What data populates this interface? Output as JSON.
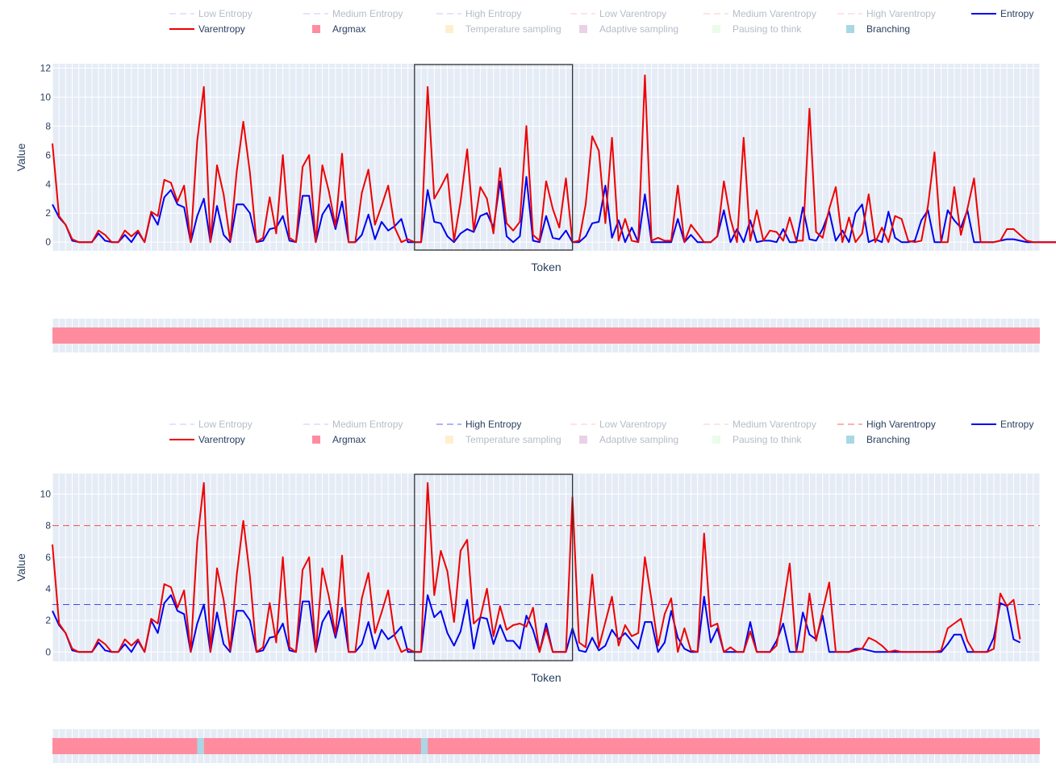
{
  "colors": {
    "entropy": "#0000ee",
    "varentropy": "#ee0000",
    "argmax": "#ff8c9e",
    "temperature": "#ffd37a",
    "adaptive": "#c27dbb",
    "pausing": "#c3f7c3",
    "branching": "#a8d8e6",
    "plot_bg": "#e5ecf6"
  },
  "legend": {
    "items": [
      {
        "key": "low_entropy",
        "label": "Low Entropy",
        "kind": "dash",
        "color": "#0000ee"
      },
      {
        "key": "medium_entropy",
        "label": "Medium Entropy",
        "kind": "dash",
        "color": "#0000ee"
      },
      {
        "key": "high_entropy",
        "label": "High Entropy",
        "kind": "dash",
        "color": "#0000ee"
      },
      {
        "key": "low_varentropy",
        "label": "Low Varentropy",
        "kind": "dash",
        "color": "#ee0000"
      },
      {
        "key": "medium_varentropy",
        "label": "Medium Varentropy",
        "kind": "dash",
        "color": "#ee0000"
      },
      {
        "key": "high_varentropy",
        "label": "High Varentropy",
        "kind": "dash",
        "color": "#ee0000"
      },
      {
        "key": "entropy",
        "label": "Entropy",
        "kind": "line",
        "color": "#0000ee"
      },
      {
        "key": "varentropy",
        "label": "Varentropy",
        "kind": "line",
        "color": "#ee0000"
      },
      {
        "key": "argmax",
        "label": "Argmax",
        "kind": "square",
        "color": "#ff8c9e"
      },
      {
        "key": "temperature",
        "label": "Temperature sampling",
        "kind": "square",
        "color": "#ffd37a"
      },
      {
        "key": "adaptive",
        "label": "Adaptive sampling",
        "kind": "square",
        "color": "#c27dbb"
      },
      {
        "key": "pausing",
        "label": "Pausing to think",
        "kind": "square",
        "color": "#c3f7c3"
      },
      {
        "key": "branching",
        "label": "Branching",
        "kind": "square",
        "color": "#a8d8e6"
      }
    ]
  },
  "chart_data": [
    {
      "type": "line",
      "xlabel": "Token",
      "ylabel": "Value",
      "ylim": [
        -0.6,
        12.3
      ],
      "yticks": [
        0,
        2,
        4,
        6,
        8,
        10,
        12
      ],
      "n_tokens": 151,
      "legend_active": [
        "entropy",
        "varentropy",
        "argmax",
        "branching"
      ],
      "thresholds": [],
      "selection": {
        "start_token": 55,
        "end_token": 79
      },
      "series": [
        {
          "name": "Entropy",
          "color_key": "entropy",
          "values": [
            2.6,
            1.7,
            1.2,
            0.1,
            0,
            0,
            0,
            0.6,
            0.1,
            0,
            0,
            0.5,
            0,
            0.7,
            0,
            2.0,
            1.2,
            3.1,
            3.6,
            2.6,
            2.4,
            0,
            1.8,
            3.0,
            0,
            2.5,
            0.5,
            0,
            2.6,
            2.6,
            2.0,
            0,
            0.1,
            0.9,
            1.0,
            1.8,
            0.1,
            0,
            3.2,
            3.2,
            0,
            1.9,
            2.6,
            0.9,
            2.8,
            0,
            0,
            0.5,
            1.9,
            0.2,
            1.4,
            0.8,
            1.1,
            1.6,
            0,
            0,
            0,
            3.6,
            1.4,
            1.3,
            0.4,
            0,
            0.6,
            0.9,
            0.7,
            1.8,
            2.0,
            1.0,
            4.2,
            0.4,
            0,
            0.4,
            4.5,
            0.1,
            0,
            1.8,
            0.3,
            0.2,
            0.8,
            0,
            0,
            0.4,
            1.3,
            1.4,
            3.9,
            0.3,
            1.5,
            0,
            1.0,
            0,
            3.3,
            0,
            0,
            0,
            0,
            1.6,
            0,
            0.5,
            0,
            0,
            0,
            0.4,
            2.2,
            0,
            0.9,
            0,
            1.5,
            0,
            0.1,
            0.1,
            0,
            0.9,
            0,
            0,
            2.4,
            0.2,
            0.1,
            0.9,
            2.1,
            0.1,
            0.8,
            0,
            2.0,
            2.6,
            0,
            0.2,
            0,
            2.1,
            0.3,
            0,
            0,
            0.1,
            1.5,
            2.2,
            0,
            0,
            2.2,
            1.5,
            1.0,
            2.2,
            0,
            0,
            0,
            0,
            0.1,
            0.2,
            0.2,
            0.1,
            0,
            0,
            0,
            0,
            0,
            0
          ]
        },
        {
          "name": "Varentropy",
          "color_key": "varentropy",
          "values": [
            6.8,
            1.8,
            1.2,
            0.2,
            0,
            0,
            0,
            0.8,
            0.5,
            0,
            0,
            0.8,
            0.4,
            0.8,
            0,
            2.1,
            1.8,
            4.3,
            4.1,
            2.8,
            3.9,
            0,
            7.0,
            10.7,
            0,
            5.3,
            3.3,
            0.1,
            4.9,
            8.3,
            4.8,
            0,
            0.3,
            3.1,
            0.6,
            6.0,
            0.3,
            0,
            5.2,
            6.0,
            0,
            5.3,
            3.5,
            1.1,
            6.1,
            0,
            0,
            3.4,
            5.0,
            1.2,
            2.5,
            3.9,
            1.0,
            0,
            0.2,
            0,
            0,
            10.7,
            3.0,
            3.8,
            4.7,
            0.1,
            2.8,
            6.4,
            0.8,
            3.8,
            3.0,
            0.6,
            5.1,
            1.3,
            0.8,
            1.4,
            8.0,
            0.5,
            0.1,
            4.2,
            2.3,
            1.0,
            4.4,
            0,
            0.1,
            2.6,
            7.3,
            6.3,
            1.3,
            7.2,
            0.1,
            1.6,
            0.1,
            0,
            11.5,
            0.1,
            0.3,
            0.1,
            0.1,
            3.9,
            0,
            1.2,
            0.6,
            0,
            0,
            0.4,
            4.2,
            1.6,
            0,
            7.2,
            0.1,
            2.2,
            0.1,
            0.8,
            0.7,
            0.1,
            1.7,
            0.1,
            0.1,
            9.2,
            0.7,
            0.3,
            2.3,
            3.8,
            0,
            1.7,
            0,
            0.6,
            3.3,
            0,
            1.0,
            0,
            1.8,
            1.6,
            0.1,
            0,
            0.1,
            2.5,
            6.2,
            0,
            0,
            3.8,
            0.5,
            2.3,
            4.4,
            0,
            0,
            0,
            0.1,
            0.9,
            0.9,
            0.5,
            0.1,
            0,
            0,
            0,
            0,
            0,
            0
          ]
        }
      ],
      "strategy_bar": [
        {
          "strategy": "argmax",
          "from": 0,
          "to": 151
        }
      ]
    },
    {
      "type": "line",
      "xlabel": "Token",
      "ylabel": "Value",
      "ylim": [
        -0.6,
        11.3
      ],
      "yticks": [
        0,
        2,
        4,
        6,
        8,
        10
      ],
      "n_tokens": 151,
      "legend_active": [
        "high_entropy",
        "high_varentropy",
        "entropy",
        "varentropy",
        "argmax",
        "branching"
      ],
      "thresholds": [
        {
          "name": "High Entropy",
          "value": 3.0,
          "color_key": "entropy"
        },
        {
          "name": "High Varentropy",
          "value": 8.0,
          "color_key": "varentropy"
        }
      ],
      "selection": {
        "start_token": 55,
        "end_token": 79
      },
      "series": [
        {
          "name": "Entropy",
          "color_key": "entropy",
          "values": [
            2.6,
            1.7,
            1.2,
            0.1,
            0,
            0,
            0,
            0.6,
            0.1,
            0,
            0,
            0.5,
            0,
            0.7,
            0,
            2.0,
            1.2,
            3.1,
            3.6,
            2.6,
            2.4,
            0,
            1.8,
            3.0,
            0,
            2.5,
            0.5,
            0,
            2.6,
            2.6,
            2.0,
            0,
            0.1,
            0.9,
            1.0,
            1.8,
            0.1,
            0,
            3.2,
            3.2,
            0,
            1.9,
            2.6,
            0.9,
            2.8,
            0,
            0,
            0.5,
            1.9,
            0.2,
            1.4,
            0.8,
            1.1,
            1.6,
            0,
            0,
            0,
            3.6,
            2.2,
            2.6,
            1.2,
            0.4,
            1.3,
            3.3,
            0.2,
            2.2,
            2.1,
            0.5,
            1.7,
            0.7,
            0.7,
            0.2,
            2.3,
            1.4,
            0,
            1.8,
            0,
            0,
            0,
            1.5,
            0.1,
            0,
            0.9,
            0.1,
            0.4,
            1.4,
            0.8,
            1.2,
            0.7,
            0.2,
            1.9,
            1.9,
            0,
            0.6,
            2.6,
            0.9,
            0.2,
            0,
            0,
            3.5,
            0.6,
            1.5,
            0,
            0,
            0,
            0,
            1.9,
            0,
            0,
            0,
            0.7,
            1.8,
            0,
            0,
            2.5,
            1.1,
            0.8,
            2.3,
            0,
            0,
            0,
            0,
            0.2,
            0.2,
            0.1,
            0,
            0,
            0,
            0,
            0,
            0,
            0,
            0,
            0,
            0,
            0,
            0.5,
            1.1,
            1.1,
            0,
            0,
            0,
            0,
            0.9,
            3.1,
            2.9,
            0.8,
            0.6
          ]
        },
        {
          "name": "Varentropy",
          "color_key": "varentropy",
          "values": [
            6.8,
            1.8,
            1.2,
            0.2,
            0,
            0,
            0,
            0.8,
            0.5,
            0,
            0,
            0.8,
            0.4,
            0.8,
            0,
            2.1,
            1.8,
            4.3,
            4.1,
            2.8,
            3.9,
            0,
            7.0,
            10.7,
            0,
            5.3,
            3.3,
            0.1,
            4.9,
            8.3,
            4.8,
            0,
            0.3,
            3.1,
            0.6,
            6.0,
            0.3,
            0,
            5.2,
            6.0,
            0,
            5.3,
            3.5,
            1.1,
            6.1,
            0,
            0,
            3.4,
            5.0,
            1.2,
            2.5,
            3.9,
            1.0,
            0,
            0.2,
            0,
            0,
            10.7,
            3.6,
            6.4,
            5.1,
            1.9,
            6.4,
            7.1,
            1.8,
            2.2,
            4.0,
            1.0,
            2.9,
            1.4,
            1.7,
            1.8,
            1.6,
            2.8,
            0,
            1.5,
            0,
            0,
            0,
            9.8,
            0.6,
            0.3,
            4.9,
            0.3,
            1.9,
            3.5,
            0.4,
            1.7,
            1.0,
            1.2,
            6.0,
            3.3,
            0.4,
            2.4,
            3.4,
            0,
            1.5,
            0.1,
            0,
            7.5,
            1.6,
            1.8,
            0,
            0.3,
            0,
            0,
            1.3,
            0,
            0,
            0,
            0.4,
            2.9,
            5.6,
            0,
            0,
            3.7,
            0.7,
            2.6,
            4.4,
            0,
            0,
            0,
            0.1,
            0.2,
            0.9,
            0.7,
            0.4,
            0,
            0.1,
            0,
            0,
            0,
            0,
            0,
            0,
            0.1,
            1.5,
            1.8,
            2.1,
            0.7,
            0,
            0,
            0,
            0.2,
            3.7,
            2.9,
            3.3,
            0.8
          ]
        }
      ],
      "strategy_bar": [
        {
          "strategy": "argmax",
          "from": 0,
          "to": 22
        },
        {
          "strategy": "branching",
          "from": 22,
          "to": 23
        },
        {
          "strategy": "argmax",
          "from": 23,
          "to": 56
        },
        {
          "strategy": "branching",
          "from": 56,
          "to": 57
        },
        {
          "strategy": "argmax",
          "from": 57,
          "to": 151
        }
      ]
    }
  ]
}
